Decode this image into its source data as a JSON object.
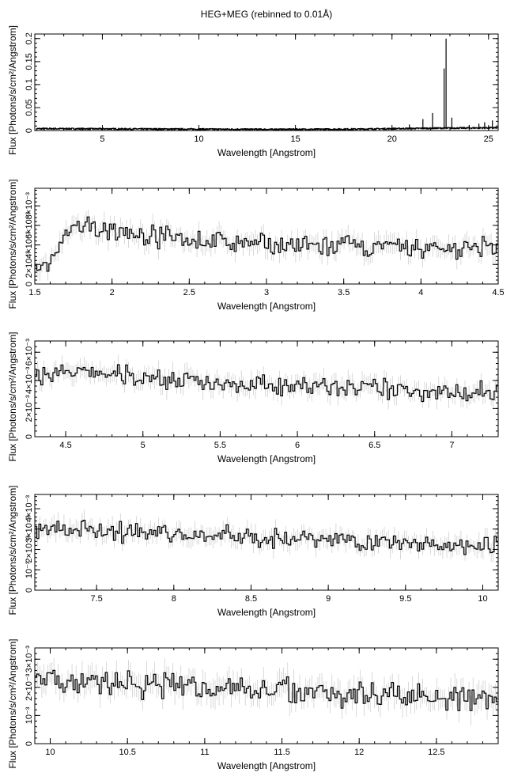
{
  "figure": {
    "title": "HEG+MEG (rebinned to 0.01Å)"
  },
  "chart_data": [
    {
      "type": "line",
      "panel": 1,
      "xlabel": "Wavelength [Angstrom]",
      "ylabel": "Flux [Photons/s/cm²/Angstrom]",
      "xlim": [
        1.5,
        25.5
      ],
      "ylim": [
        0,
        0.21
      ],
      "xticks": [
        5,
        10,
        15,
        20,
        25
      ],
      "xtick_labels": [
        "5",
        "10",
        "15",
        "20",
        "25"
      ],
      "yticks": [
        0,
        0.05,
        0.1,
        0.15,
        0.2
      ],
      "ytick_labels": [
        "0",
        "0.05",
        "0.1",
        "0.15",
        "0.2"
      ],
      "continuum": [
        [
          1.6,
          0.004
        ],
        [
          3,
          0.004
        ],
        [
          6,
          0.0035
        ],
        [
          10,
          0.003
        ],
        [
          14,
          0.0025
        ],
        [
          18,
          0.003
        ],
        [
          20,
          0.004
        ],
        [
          22,
          0.005
        ],
        [
          25.5,
          0.006
        ]
      ],
      "lines": [
        [
          18.97,
          0.006
        ],
        [
          19.5,
          0.005
        ],
        [
          20.0,
          0.007
        ],
        [
          20.9,
          0.013
        ],
        [
          21.6,
          0.025
        ],
        [
          22.1,
          0.038
        ],
        [
          22.7,
          0.135
        ],
        [
          22.8,
          0.2
        ],
        [
          23.1,
          0.028
        ],
        [
          24.0,
          0.012
        ],
        [
          24.5,
          0.015
        ],
        [
          24.8,
          0.018
        ],
        [
          25.2,
          0.022
        ]
      ]
    },
    {
      "type": "line",
      "panel": 2,
      "xlabel": "Wavelength [Angstrom]",
      "ylabel": "Flux [Photons/s/cm²/Angstrom]",
      "xlim": [
        1.5,
        4.5
      ],
      "ylim": [
        0,
        0.0098
      ],
      "xticks": [
        1.5,
        2,
        2.5,
        3,
        3.5,
        4,
        4.5
      ],
      "xtick_labels": [
        "1.5",
        "2",
        "2.5",
        "3",
        "3.5",
        "4",
        "4.5"
      ],
      "yticks": [
        0,
        0.002,
        0.004,
        0.006,
        0.008
      ],
      "ytick_labels": [
        "0",
        "2×10⁻³",
        "4×10⁻³",
        "6×10⁻³",
        "8×10⁻³"
      ],
      "profile": [
        [
          1.5,
          0.001
        ],
        [
          1.6,
          0.002
        ],
        [
          1.7,
          0.005
        ],
        [
          1.8,
          0.0058
        ],
        [
          1.9,
          0.0057
        ],
        [
          2.0,
          0.0055
        ],
        [
          2.5,
          0.0045
        ],
        [
          3.0,
          0.004
        ],
        [
          3.5,
          0.0038
        ],
        [
          4.0,
          0.0037
        ],
        [
          4.5,
          0.0036
        ]
      ],
      "noise": 0.0009
    },
    {
      "type": "line",
      "panel": 3,
      "xlabel": "Wavelength [Angstrom]",
      "ylabel": "Flux [Photons/s/cm²/Angstrom]",
      "xlim": [
        4.3,
        7.3
      ],
      "ylim": [
        0,
        0.0068
      ],
      "xticks": [
        4.5,
        5,
        5.5,
        6,
        6.5,
        7
      ],
      "xtick_labels": [
        "4.5",
        "5",
        "5.5",
        "6",
        "6.5",
        "7"
      ],
      "yticks": [
        0,
        0.002,
        0.004,
        0.006
      ],
      "ytick_labels": [
        "0",
        "2×10⁻³",
        "4×10⁻³",
        "6×10⁻³"
      ],
      "profile": [
        [
          4.3,
          0.0045
        ],
        [
          4.7,
          0.0045
        ],
        [
          5.0,
          0.0042
        ],
        [
          5.5,
          0.0038
        ],
        [
          6.0,
          0.0036
        ],
        [
          6.5,
          0.0034
        ],
        [
          7.0,
          0.0032
        ],
        [
          7.3,
          0.0032
        ]
      ],
      "noise": 0.0006
    },
    {
      "type": "line",
      "panel": 4,
      "xlabel": "Wavelength [Angstrom]",
      "ylabel": "Flux [Photons/s/cm²/Angstrom]",
      "xlim": [
        7.1,
        10.1
      ],
      "ylim": [
        0,
        0.0047
      ],
      "xticks": [
        7.5,
        8,
        8.5,
        9,
        9.5,
        10
      ],
      "xtick_labels": [
        "7.5",
        "8",
        "8.5",
        "9",
        "9.5",
        "10"
      ],
      "yticks": [
        0,
        0.001,
        0.002,
        0.003,
        0.004
      ],
      "ytick_labels": [
        "0",
        "10⁻³",
        "2×10⁻³",
        "3×10⁻³",
        "4×10⁻³"
      ],
      "profile": [
        [
          7.1,
          0.003
        ],
        [
          7.5,
          0.0029
        ],
        [
          8.0,
          0.0028
        ],
        [
          8.5,
          0.0026
        ],
        [
          9.0,
          0.0025
        ],
        [
          9.5,
          0.0023
        ],
        [
          10.1,
          0.0022
        ]
      ],
      "noise": 0.0004
    },
    {
      "type": "line",
      "panel": 5,
      "xlabel": "Wavelength [Angstrom]",
      "ylabel": "Flux [Photons/s/cm²/Angstrom]",
      "xlim": [
        9.9,
        12.9
      ],
      "ylim": [
        0,
        0.0034
      ],
      "xticks": [
        10,
        10.5,
        11,
        11.5,
        12,
        12.5
      ],
      "xtick_labels": [
        "10",
        "10.5",
        "11",
        "11.5",
        "12",
        "12.5"
      ],
      "yticks": [
        0,
        0.001,
        0.002,
        0.003
      ],
      "ytick_labels": [
        "0",
        "10⁻³",
        "2×10⁻³",
        "3×10⁻³"
      ],
      "profile": [
        [
          9.9,
          0.0022
        ],
        [
          10.5,
          0.0021
        ],
        [
          11.0,
          0.002
        ],
        [
          11.5,
          0.0019
        ],
        [
          12.0,
          0.0018
        ],
        [
          12.5,
          0.0017
        ],
        [
          12.9,
          0.0016
        ]
      ],
      "noise": 0.0004
    }
  ]
}
